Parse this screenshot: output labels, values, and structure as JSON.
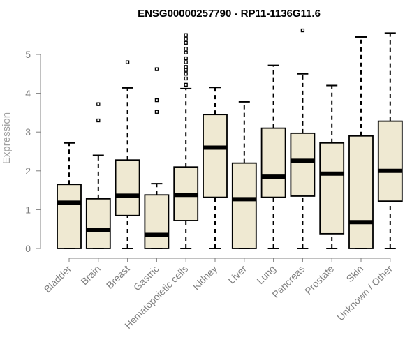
{
  "chart_data": {
    "type": "boxplot",
    "title": "ENSG00000257790 - RP11-1136G11.6",
    "xlabel": "",
    "ylabel": "Expression",
    "ylim": [
      0,
      5
    ],
    "yticks": [
      "0",
      "1",
      "2",
      "3",
      "4",
      "5"
    ],
    "box_color": "#efe9d2",
    "categories": [
      "Bladder",
      "Brain",
      "Breast",
      "Gastric",
      "Hematopoietic cells",
      "Kidney",
      "Liver",
      "Lung",
      "Pancreas",
      "Prostate",
      "Skin",
      "Unknown / Other"
    ],
    "series": [
      {
        "name": "Bladder",
        "min": 0,
        "q1": 0,
        "median": 1.18,
        "q3": 1.65,
        "max": 2.72,
        "outliers": []
      },
      {
        "name": "Brain",
        "min": 0,
        "q1": 0,
        "median": 0.48,
        "q3": 1.28,
        "max": 2.4,
        "outliers": [
          3.3,
          3.72
        ]
      },
      {
        "name": "Breast",
        "min": 0,
        "q1": 0.85,
        "median": 1.36,
        "q3": 2.28,
        "max": 4.14,
        "outliers": [
          4.8
        ]
      },
      {
        "name": "Gastric",
        "min": 0,
        "q1": 0,
        "median": 0.35,
        "q3": 1.38,
        "max": 1.67,
        "outliers": [
          3.52,
          3.82,
          4.62
        ]
      },
      {
        "name": "Hematopoietic cells",
        "min": 0,
        "q1": 0.72,
        "median": 1.38,
        "q3": 2.1,
        "max": 4.12,
        "outliers": [
          4.22,
          4.38,
          4.5,
          4.6,
          4.68,
          4.8,
          4.9,
          5.05,
          5.15,
          5.3,
          5.4,
          5.5
        ]
      },
      {
        "name": "Kidney",
        "min": 0,
        "q1": 1.32,
        "median": 2.6,
        "q3": 3.45,
        "max": 4.15,
        "outliers": []
      },
      {
        "name": "Liver",
        "min": 0,
        "q1": 0,
        "median": 1.27,
        "q3": 2.2,
        "max": 3.78,
        "outliers": []
      },
      {
        "name": "Lung",
        "min": 0,
        "q1": 1.32,
        "median": 1.85,
        "q3": 3.1,
        "max": 4.72,
        "outliers": []
      },
      {
        "name": "Pancreas",
        "min": 0,
        "q1": 1.35,
        "median": 2.26,
        "q3": 2.97,
        "max": 4.5,
        "outliers": [
          5.62
        ]
      },
      {
        "name": "Prostate",
        "min": 0,
        "q1": 0.38,
        "median": 1.93,
        "q3": 2.72,
        "max": 4.2,
        "outliers": []
      },
      {
        "name": "Skin",
        "min": 0,
        "q1": 0,
        "median": 0.68,
        "q3": 2.9,
        "max": 5.45,
        "outliers": []
      },
      {
        "name": "Unknown / Other",
        "min": 0,
        "q1": 1.22,
        "median": 2.0,
        "q3": 3.28,
        "max": 5.55,
        "outliers": []
      }
    ]
  }
}
